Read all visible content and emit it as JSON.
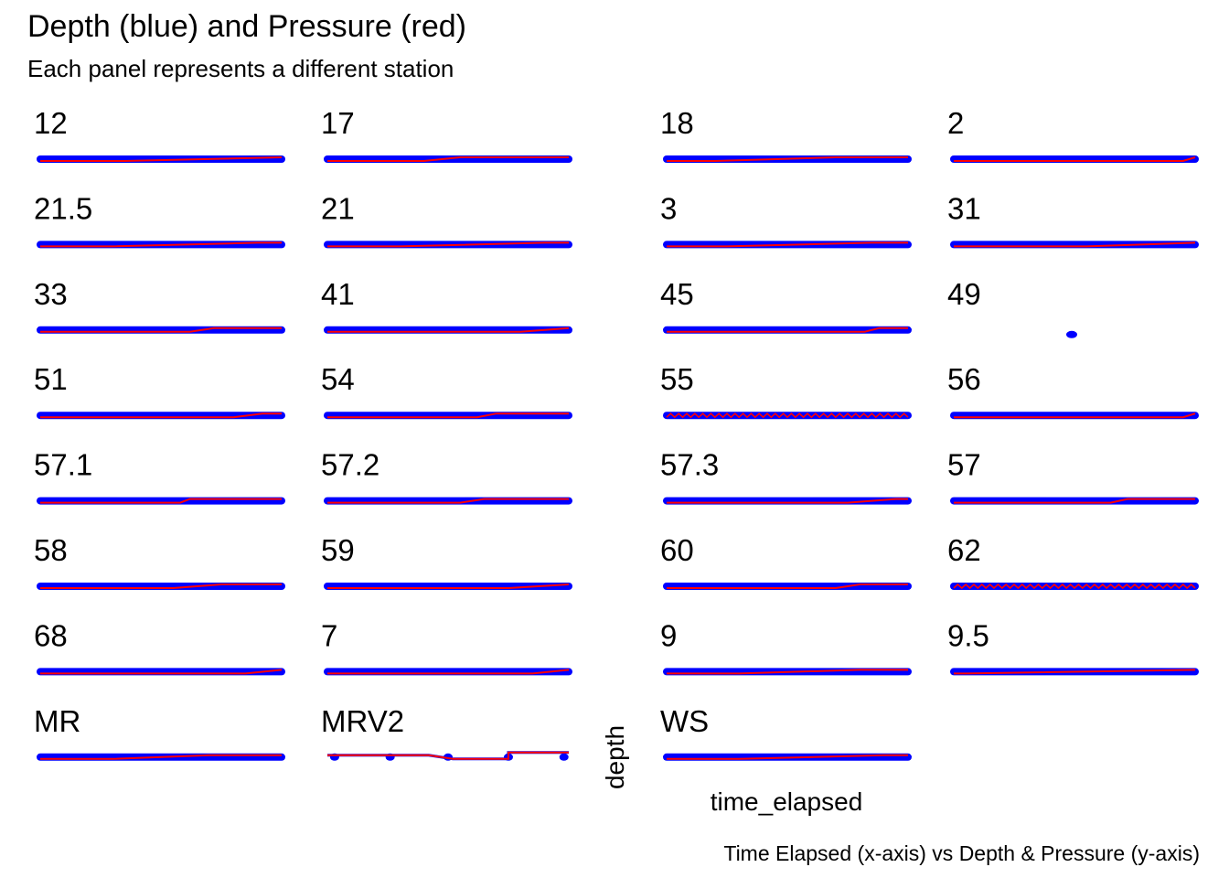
{
  "chart_data": {
    "type": "line",
    "title": "Depth (blue) and Pressure (red)",
    "subtitle": "Each panel represents a different station",
    "xlabel": "time_elapsed",
    "ylabel": "depth",
    "caption": "Time Elapsed (x-axis) vs Depth & Pressure (y-axis)",
    "grid": false,
    "legend": "none",
    "colors": {
      "depth": "#0000ff",
      "pressure": "#ff0000"
    },
    "series_names": [
      "depth",
      "pressure"
    ],
    "panels": [
      {
        "label": "12",
        "style": "rise",
        "ramp": [
          0.35,
          1.0
        ]
      },
      {
        "label": "17",
        "style": "rise",
        "ramp": [
          0.4,
          0.55
        ]
      },
      {
        "label": "18",
        "style": "rise",
        "ramp": [
          0.2,
          0.7
        ]
      },
      {
        "label": "2",
        "style": "rise",
        "ramp": [
          0.95,
          1.0
        ]
      },
      {
        "label": "21.5",
        "style": "rise",
        "ramp": [
          0.3,
          0.9
        ]
      },
      {
        "label": "21",
        "style": "rise",
        "ramp": [
          0.3,
          0.9
        ]
      },
      {
        "label": "3",
        "style": "rise",
        "ramp": [
          0.25,
          0.85
        ]
      },
      {
        "label": "31",
        "style": "rise",
        "ramp": [
          0.55,
          1.0
        ]
      },
      {
        "label": "33",
        "style": "rise",
        "ramp": [
          0.62,
          0.72
        ]
      },
      {
        "label": "41",
        "style": "rise",
        "ramp": [
          0.8,
          1.0
        ]
      },
      {
        "label": "45",
        "style": "rise",
        "ramp": [
          0.82,
          0.88
        ]
      },
      {
        "label": "49",
        "style": "point"
      },
      {
        "label": "51",
        "style": "rise",
        "ramp": [
          0.8,
          0.92
        ]
      },
      {
        "label": "54",
        "style": "rise",
        "ramp": [
          0.62,
          0.7
        ]
      },
      {
        "label": "55",
        "style": "wave"
      },
      {
        "label": "56",
        "style": "rise",
        "ramp": [
          0.95,
          1.0
        ]
      },
      {
        "label": "57.1",
        "style": "rise",
        "ramp": [
          0.58,
          0.62
        ]
      },
      {
        "label": "57.2",
        "style": "rise",
        "ramp": [
          0.55,
          0.65
        ]
      },
      {
        "label": "57.3",
        "style": "rise",
        "ramp": [
          0.75,
          0.95
        ]
      },
      {
        "label": "57",
        "style": "rise",
        "ramp": [
          0.65,
          0.72
        ]
      },
      {
        "label": "58",
        "style": "rise",
        "ramp": [
          0.55,
          0.75
        ]
      },
      {
        "label": "59",
        "style": "rise",
        "ramp": [
          0.75,
          1.0
        ]
      },
      {
        "label": "60",
        "style": "rise",
        "ramp": [
          0.7,
          0.8
        ]
      },
      {
        "label": "62",
        "style": "wave"
      },
      {
        "label": "68",
        "style": "rise",
        "ramp": [
          0.85,
          1.0
        ]
      },
      {
        "label": "7",
        "style": "rise",
        "ramp": [
          0.85,
          1.0
        ]
      },
      {
        "label": "9",
        "style": "rise",
        "ramp": [
          0.3,
          0.8
        ]
      },
      {
        "label": "9.5",
        "style": "rise",
        "ramp": [
          0.05,
          1.0
        ]
      },
      {
        "label": "MR",
        "style": "rise",
        "ramp": [
          0.3,
          0.7
        ]
      },
      {
        "label": "MRV2",
        "style": "step"
      },
      {
        "label": "WS",
        "style": "rise",
        "ramp": [
          0.3,
          0.9
        ]
      }
    ]
  }
}
